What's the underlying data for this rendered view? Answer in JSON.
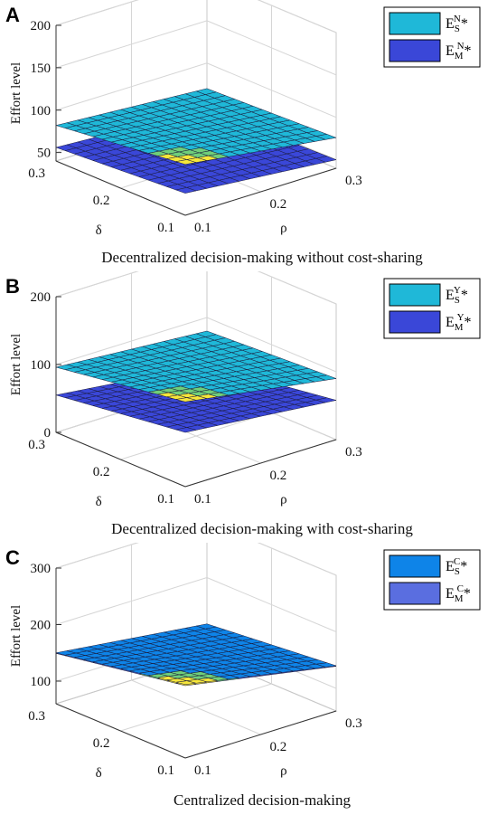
{
  "chart_data": [
    {
      "panel": "A",
      "type": "surface3d",
      "caption": "Decentralized decision-making without cost-sharing",
      "zlabel": "Effort level",
      "xlabel": "ρ",
      "ylabel": "δ",
      "z_ticks": [
        "50",
        "100",
        "150",
        "200"
      ],
      "zlim": [
        40,
        200
      ],
      "x_ticks": [
        "0.1",
        "0.2",
        "0.3"
      ],
      "y_ticks": [
        "0.1",
        "0.2",
        "0.3"
      ],
      "rho": [
        0.1,
        0.3
      ],
      "delta": [
        0.1,
        0.3
      ],
      "series": [
        {
          "legend_main": "E",
          "legend_sup": "N",
          "legend_sub": "S",
          "legend_star": "*",
          "color": "#1fb8d8",
          "z_corners": {
            "rho_lo_delta_lo": 100,
            "rho_hi_delta_lo": 76,
            "rho_lo_delta_hi": 82,
            "rho_hi_delta_hi": 70
          }
        },
        {
          "legend_main": "E",
          "legend_sup": "N",
          "legend_sub": "M",
          "legend_star": "*",
          "color": "#3a47d8",
          "z_corners": {
            "rho_lo_delta_lo": 66,
            "rho_hi_delta_lo": 50,
            "rho_lo_delta_hi": 56,
            "rho_hi_delta_hi": 46
          }
        }
      ]
    },
    {
      "panel": "B",
      "type": "surface3d",
      "caption": "Decentralized decision-making with cost-sharing",
      "zlabel": "Effort level",
      "xlabel": "ρ",
      "ylabel": "δ",
      "z_ticks": [
        "0",
        "100",
        "200"
      ],
      "zlim": [
        0,
        200
      ],
      "x_ticks": [
        "0.1",
        "0.2",
        "0.3"
      ],
      "y_ticks": [
        "0.1",
        "0.2",
        "0.3"
      ],
      "rho": [
        0.1,
        0.3
      ],
      "delta": [
        0.1,
        0.3
      ],
      "series": [
        {
          "legend_main": "E",
          "legend_sup": "Y",
          "legend_sub": "S",
          "legend_star": "*",
          "color": "#1fb8d8",
          "z_corners": {
            "rho_lo_delta_lo": 125,
            "rho_hi_delta_lo": 90,
            "rho_lo_delta_hi": 96,
            "rho_hi_delta_hi": 80
          }
        },
        {
          "legend_main": "E",
          "legend_sup": "Y",
          "legend_sub": "M",
          "legend_star": "*",
          "color": "#3a47d8",
          "z_corners": {
            "rho_lo_delta_lo": 80,
            "rho_hi_delta_lo": 58,
            "rho_lo_delta_hi": 55,
            "rho_hi_delta_hi": 30
          }
        }
      ]
    },
    {
      "panel": "C",
      "type": "surface3d",
      "caption": "Centralized decision-making",
      "zlabel": "Effort level",
      "xlabel": "ρ",
      "ylabel": "δ",
      "z_ticks": [
        "100",
        "200",
        "300"
      ],
      "zlim": [
        60,
        300
      ],
      "x_ticks": [
        "0.1",
        "0.2",
        "0.3"
      ],
      "y_ticks": [
        "0.1",
        "0.2",
        "0.3"
      ],
      "rho": [
        0.1,
        0.3
      ],
      "delta": [
        0.1,
        0.3
      ],
      "series": [
        {
          "legend_main": "E",
          "legend_sup": "C",
          "legend_sub": "S",
          "legend_star": "*",
          "color": "#0e84e8",
          "z_corners": {
            "rho_lo_delta_lo": 190,
            "rho_hi_delta_lo": 140,
            "rho_lo_delta_hi": 150,
            "rho_hi_delta_hi": 118
          }
        },
        {
          "legend_main": "E",
          "legend_sup": "C",
          "legend_sub": "M",
          "legend_star": "*",
          "color": "#5a6ee0",
          "z_corners": {
            "rho_lo_delta_lo": 188,
            "rho_hi_delta_lo": 139,
            "rho_lo_delta_hi": 149,
            "rho_hi_delta_hi": 117
          }
        }
      ]
    }
  ]
}
